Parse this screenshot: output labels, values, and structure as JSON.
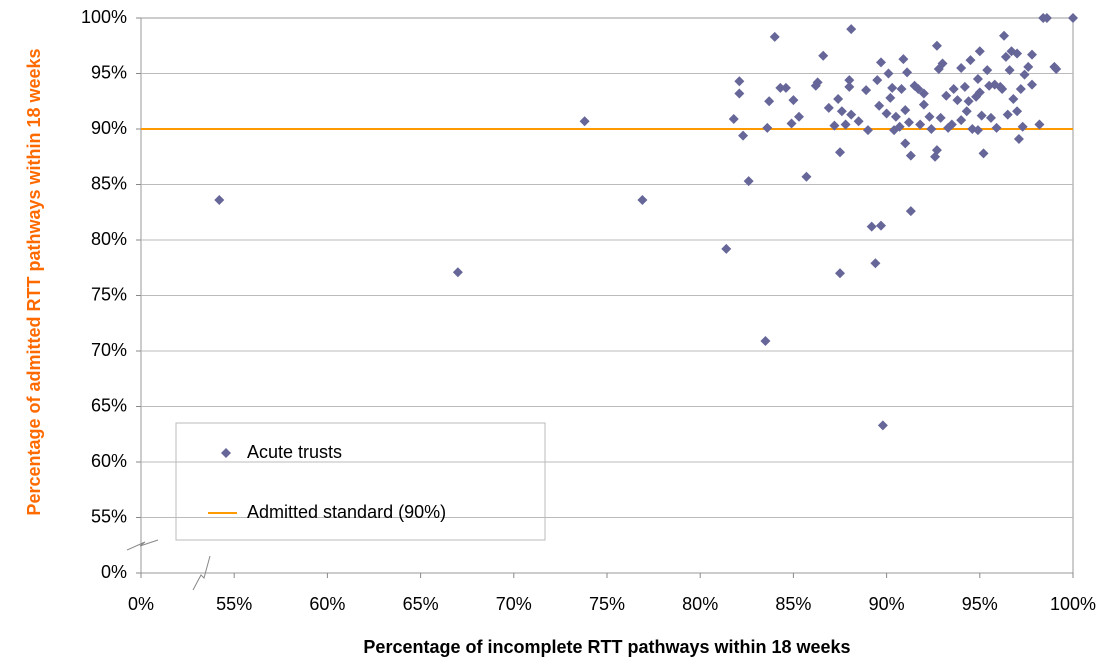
{
  "chart_data": {
    "type": "scatter",
    "x_label": "Percentage of incomplete RTT pathways within 18 weeks",
    "y_label": "Percentage of admitted RTT pathways within 18 weeks",
    "x_label_color": "#4472ee",
    "y_label_color": "#ff6a00",
    "xlim": [
      50,
      100
    ],
    "ylim": [
      50,
      100
    ],
    "x_break": [
      0,
      50
    ],
    "y_break": [
      0,
      50
    ],
    "xticks": [
      {
        "value": 0,
        "label": "0%"
      },
      {
        "value": 55,
        "label": "55%"
      },
      {
        "value": 60,
        "label": "60%"
      },
      {
        "value": 65,
        "label": "65%"
      },
      {
        "value": 70,
        "label": "70%"
      },
      {
        "value": 75,
        "label": "75%"
      },
      {
        "value": 80,
        "label": "80%"
      },
      {
        "value": 85,
        "label": "85%"
      },
      {
        "value": 90,
        "label": "90%"
      },
      {
        "value": 95,
        "label": "95%"
      },
      {
        "value": 100,
        "label": "100%"
      }
    ],
    "yticks": [
      {
        "value": 0,
        "label": "0%"
      },
      {
        "value": 55,
        "label": "55%"
      },
      {
        "value": 60,
        "label": "60%"
      },
      {
        "value": 65,
        "label": "65%"
      },
      {
        "value": 70,
        "label": "70%"
      },
      {
        "value": 75,
        "label": "75%"
      },
      {
        "value": 80,
        "label": "80%"
      },
      {
        "value": 85,
        "label": "85%"
      },
      {
        "value": 90,
        "label": "90%"
      },
      {
        "value": 95,
        "label": "95%"
      },
      {
        "value": 100,
        "label": "100%"
      }
    ],
    "grid": true,
    "legend": "lower left",
    "series": [
      {
        "name": "Acute trusts",
        "color": "#666699",
        "x": [
          54.2,
          67.0,
          73.8,
          76.9,
          81.4,
          81.8,
          82.1,
          82.1,
          82.3,
          82.6,
          83.5,
          83.6,
          83.7,
          84.0,
          84.3,
          84.6,
          84.9,
          85.0,
          85.3,
          85.7,
          86.2,
          86.3,
          86.6,
          86.9,
          87.2,
          87.4,
          87.5,
          87.5,
          87.6,
          87.8,
          88.0,
          88.0,
          88.1,
          88.1,
          88.5,
          88.9,
          89.0,
          89.2,
          89.4,
          89.5,
          89.6,
          89.7,
          89.7,
          89.8,
          90.0,
          90.1,
          90.2,
          90.3,
          90.4,
          90.5,
          90.7,
          90.8,
          90.9,
          91.0,
          91.0,
          91.1,
          91.2,
          91.3,
          91.3,
          91.5,
          91.7,
          91.8,
          92.0,
          92.0,
          92.3,
          92.4,
          92.6,
          92.7,
          92.7,
          92.8,
          92.9,
          93.0,
          93.2,
          93.3,
          93.5,
          93.6,
          93.8,
          94.0,
          94.0,
          94.2,
          94.3,
          94.4,
          94.5,
          94.6,
          94.8,
          94.9,
          94.9,
          95.0,
          95.0,
          95.1,
          95.2,
          95.4,
          95.5,
          95.6,
          95.8,
          95.9,
          96.1,
          96.2,
          96.3,
          96.4,
          96.5,
          96.6,
          96.7,
          96.8,
          97.0,
          97.0,
          97.1,
          97.2,
          97.3,
          97.4,
          97.6,
          97.8,
          97.8,
          98.2,
          98.4,
          98.6,
          99.0,
          99.1,
          100
        ],
        "values": [
          83.6,
          77.1,
          90.7,
          83.6,
          79.2,
          90.9,
          94.3,
          93.2,
          89.4,
          85.3,
          70.9,
          90.1,
          92.5,
          98.3,
          93.7,
          93.7,
          90.5,
          92.6,
          91.1,
          85.7,
          93.9,
          94.2,
          96.6,
          91.9,
          90.3,
          92.7,
          87.9,
          77.0,
          91.6,
          90.4,
          94.4,
          93.8,
          99.0,
          91.3,
          90.7,
          93.5,
          89.9,
          81.2,
          77.9,
          94.4,
          92.1,
          96.0,
          81.3,
          63.3,
          91.4,
          95.0,
          92.8,
          93.7,
          89.9,
          91.1,
          90.2,
          93.6,
          96.3,
          91.7,
          88.7,
          95.1,
          90.6,
          87.6,
          82.6,
          93.9,
          93.6,
          90.4,
          92.2,
          93.2,
          91.1,
          90.0,
          87.5,
          88.1,
          97.5,
          95.4,
          91.0,
          95.9,
          93.0,
          90.1,
          90.4,
          93.6,
          92.6,
          95.5,
          90.8,
          93.8,
          91.6,
          92.5,
          96.2,
          90.0,
          92.9,
          94.5,
          89.9,
          97.0,
          93.3,
          91.2,
          87.8,
          95.3,
          93.9,
          91.0,
          94.0,
          90.1,
          93.8,
          93.6,
          98.4,
          96.5,
          91.3,
          95.3,
          97.0,
          92.7,
          96.8,
          91.6,
          89.1,
          93.6,
          90.2,
          94.9,
          95.6,
          96.7,
          94.0,
          90.4,
          100,
          100,
          95.6,
          95.4,
          100
        ]
      }
    ],
    "reference_lines": [
      {
        "name": "Admitted standard (90%)",
        "value": 90,
        "color": "#ff9900"
      }
    ]
  }
}
